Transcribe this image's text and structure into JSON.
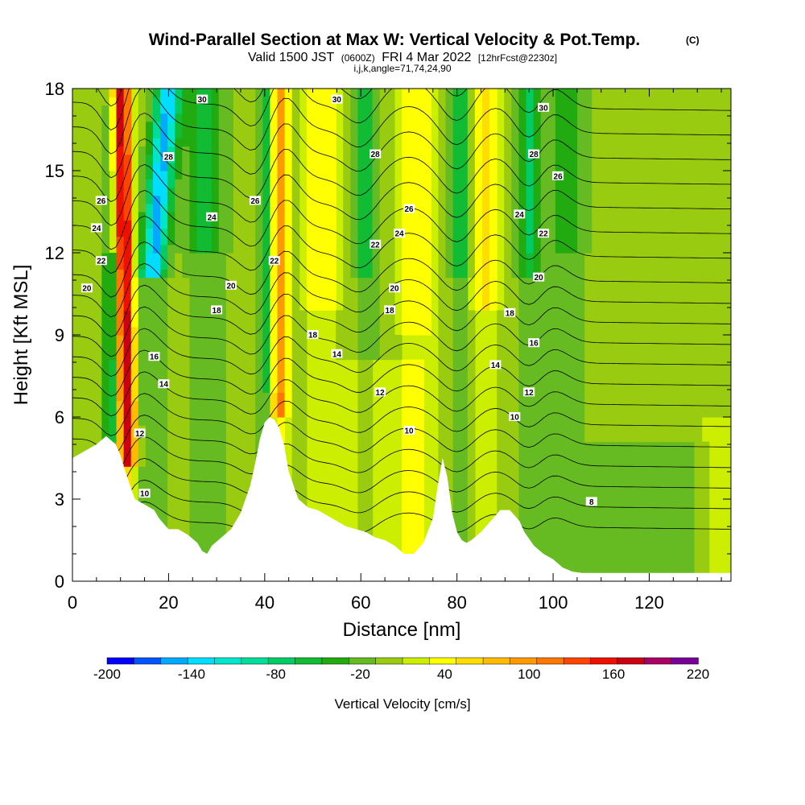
{
  "title": {
    "main": "Wind-Parallel Section at Max W: Vertical Velocity & Pot.Temp.",
    "copyright": "(C)",
    "valid_prefix": "Valid 1500 JST",
    "valid_z": "(0600Z)",
    "valid_date": "FRI 4 Mar 2022",
    "fcst": "[12hrFcst@2230z]",
    "params": "i,j,k,angle=71,74,24,90"
  },
  "chart_data": {
    "type": "heatmap",
    "xlabel": "Distance [nm]",
    "ylabel": "Height [Kft MSL]",
    "xlim": [
      0,
      137
    ],
    "ylim": [
      0,
      18
    ],
    "x_ticks": [
      0,
      20,
      40,
      60,
      80,
      100,
      120
    ],
    "y_ticks": [
      0,
      3,
      6,
      9,
      12,
      15,
      18
    ],
    "colorbar": {
      "label": "Vertical Velocity [cm/s]",
      "min": -200,
      "max": 220,
      "step": 20,
      "tick_labels": [
        "-200",
        "-140",
        "-80",
        "-20",
        "40",
        "100",
        "160",
        "220"
      ],
      "colors": [
        "#0000ff",
        "#0055ff",
        "#00aaff",
        "#00ddff",
        "#00e6cc",
        "#00dd99",
        "#00cc66",
        "#11bb33",
        "#22aa11",
        "#66bb22",
        "#99cc11",
        "#ccee00",
        "#ffff00",
        "#ffdd00",
        "#ffbb00",
        "#ff9900",
        "#ff7700",
        "#ff4400",
        "#ee1100",
        "#cc0011",
        "#aa0066",
        "#770099"
      ]
    },
    "terrain_kft": [
      [
        0,
        4.5
      ],
      [
        3,
        4.8
      ],
      [
        5,
        5.0
      ],
      [
        7,
        5.3
      ],
      [
        9,
        5.0
      ],
      [
        10,
        4.6
      ],
      [
        11,
        4.0
      ],
      [
        12,
        3.5
      ],
      [
        13,
        3.0
      ],
      [
        15,
        2.8
      ],
      [
        17,
        2.6
      ],
      [
        18,
        2.3
      ],
      [
        19,
        2.1
      ],
      [
        20,
        1.9
      ],
      [
        22,
        1.9
      ],
      [
        24,
        1.7
      ],
      [
        26,
        1.4
      ],
      [
        27,
        1.1
      ],
      [
        28,
        1.0
      ],
      [
        29,
        1.3
      ],
      [
        31,
        1.6
      ],
      [
        33,
        1.9
      ],
      [
        35,
        2.5
      ],
      [
        37,
        3.5
      ],
      [
        38,
        4.3
      ],
      [
        39,
        5.2
      ],
      [
        40,
        5.8
      ],
      [
        41,
        6.0
      ],
      [
        42,
        5.9
      ],
      [
        43,
        5.6
      ],
      [
        44,
        5.0
      ],
      [
        45,
        4.0
      ],
      [
        47,
        3.0
      ],
      [
        49,
        2.7
      ],
      [
        51,
        2.6
      ],
      [
        53,
        2.4
      ],
      [
        55,
        2.2
      ],
      [
        57,
        2.0
      ],
      [
        59,
        1.9
      ],
      [
        61,
        1.8
      ],
      [
        63,
        1.6
      ],
      [
        65,
        1.5
      ],
      [
        67,
        1.3
      ],
      [
        69,
        1.0
      ],
      [
        71,
        1.0
      ],
      [
        73,
        1.4
      ],
      [
        75,
        2.3
      ],
      [
        76,
        3.5
      ],
      [
        77,
        4.5
      ],
      [
        78,
        3.8
      ],
      [
        79,
        2.5
      ],
      [
        80,
        1.8
      ],
      [
        81,
        1.5
      ],
      [
        82,
        1.4
      ],
      [
        83,
        1.5
      ],
      [
        85,
        1.8
      ],
      [
        87,
        2.2
      ],
      [
        89,
        2.6
      ],
      [
        91,
        2.6
      ],
      [
        93,
        2.2
      ],
      [
        94,
        1.8
      ],
      [
        96,
        1.3
      ],
      [
        98,
        1.0
      ],
      [
        100,
        0.8
      ],
      [
        102,
        0.5
      ],
      [
        104,
        0.35
      ],
      [
        106,
        0.3
      ],
      [
        137,
        0.3
      ]
    ],
    "isentrope_labels": [
      {
        "x": 27,
        "y": 17.6,
        "text": "30"
      },
      {
        "x": 55,
        "y": 17.6,
        "text": "30"
      },
      {
        "x": 98,
        "y": 17.3,
        "text": "30"
      },
      {
        "x": 20,
        "y": 15.5,
        "text": "28"
      },
      {
        "x": 63,
        "y": 15.6,
        "text": "28"
      },
      {
        "x": 96,
        "y": 15.6,
        "text": "28"
      },
      {
        "x": 101,
        "y": 14.8,
        "text": "26"
      },
      {
        "x": 6,
        "y": 13.9,
        "text": "26"
      },
      {
        "x": 38,
        "y": 13.9,
        "text": "26"
      },
      {
        "x": 70,
        "y": 13.6,
        "text": "26"
      },
      {
        "x": 29,
        "y": 13.3,
        "text": "24"
      },
      {
        "x": 93,
        "y": 13.4,
        "text": "24"
      },
      {
        "x": 5,
        "y": 12.9,
        "text": "24"
      },
      {
        "x": 68,
        "y": 12.7,
        "text": "24"
      },
      {
        "x": 98,
        "y": 12.7,
        "text": "22"
      },
      {
        "x": 63,
        "y": 12.3,
        "text": "22"
      },
      {
        "x": 6,
        "y": 11.7,
        "text": "22"
      },
      {
        "x": 42,
        "y": 11.7,
        "text": "22"
      },
      {
        "x": 97,
        "y": 11.1,
        "text": "20"
      },
      {
        "x": 33,
        "y": 10.8,
        "text": "20"
      },
      {
        "x": 3,
        "y": 10.7,
        "text": "20"
      },
      {
        "x": 67,
        "y": 10.7,
        "text": "20"
      },
      {
        "x": 30,
        "y": 9.9,
        "text": "18"
      },
      {
        "x": 66,
        "y": 9.9,
        "text": "18"
      },
      {
        "x": 91,
        "y": 9.8,
        "text": "18"
      },
      {
        "x": 50,
        "y": 9.0,
        "text": "18"
      },
      {
        "x": 96,
        "y": 8.7,
        "text": "16"
      },
      {
        "x": 17,
        "y": 8.2,
        "text": "16"
      },
      {
        "x": 55,
        "y": 8.3,
        "text": "14"
      },
      {
        "x": 88,
        "y": 7.9,
        "text": "14"
      },
      {
        "x": 19,
        "y": 7.2,
        "text": "14"
      },
      {
        "x": 64,
        "y": 6.9,
        "text": "12"
      },
      {
        "x": 95,
        "y": 6.9,
        "text": "12"
      },
      {
        "x": 92,
        "y": 6.0,
        "text": "10"
      },
      {
        "x": 14,
        "y": 5.4,
        "text": "12"
      },
      {
        "x": 70,
        "y": 5.5,
        "text": "10"
      },
      {
        "x": 15,
        "y": 3.2,
        "text": "10"
      },
      {
        "x": 108,
        "y": 2.9,
        "text": "8"
      }
    ]
  }
}
